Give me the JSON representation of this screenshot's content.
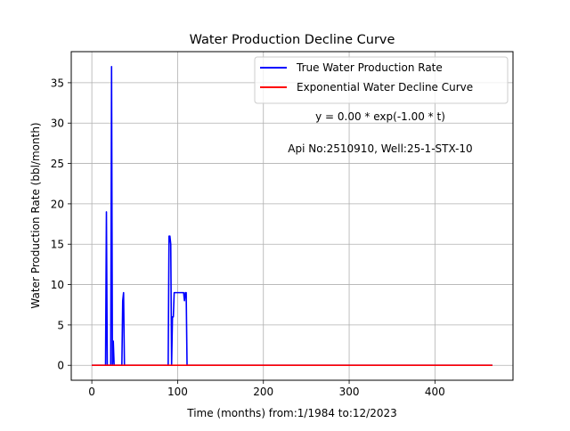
{
  "chart_data": {
    "type": "line",
    "title": "Water Production Decline Curve",
    "xlabel": "Time (months) from:1/1984 to:12/2023",
    "ylabel": "Water Production Rate (bbl/month)",
    "xlim": [
      -24,
      491
    ],
    "ylim": [
      -1.85,
      38.85
    ],
    "xticks": [
      0,
      100,
      200,
      300,
      400
    ],
    "yticks": [
      0,
      5,
      10,
      15,
      20,
      25,
      30,
      35
    ],
    "grid": true,
    "legend_position": "top-right",
    "annotations": {
      "equation": "y = 0.00 * exp(-1.00 * t)",
      "well_info": "Api No:2510910, Well:25-1-STX-10"
    },
    "series": [
      {
        "name": "True Water Production Rate",
        "color": "#0000ff",
        "x": [
          0,
          16,
          17,
          18,
          19,
          22,
          23,
          24,
          25,
          26,
          27,
          35,
          36,
          37,
          38,
          39,
          89,
          90,
          91,
          92,
          93,
          94,
          95,
          96,
          97,
          98,
          99,
          100,
          101,
          102,
          103,
          104,
          105,
          106,
          107,
          108,
          109,
          110,
          111,
          112,
          467
        ],
        "y": [
          0,
          0,
          19,
          0,
          0,
          0,
          37,
          0,
          3,
          0,
          0,
          0,
          8,
          9,
          0,
          0,
          0,
          16,
          16,
          15,
          0,
          6,
          6,
          9,
          9,
          9,
          9,
          9,
          9,
          9,
          9,
          9,
          9,
          9,
          9,
          8,
          9,
          9,
          0,
          0,
          0
        ]
      },
      {
        "name": "Exponential Water Decline Curve",
        "color": "#ff0000",
        "x": [
          0,
          467
        ],
        "y": [
          0,
          0
        ]
      }
    ]
  }
}
